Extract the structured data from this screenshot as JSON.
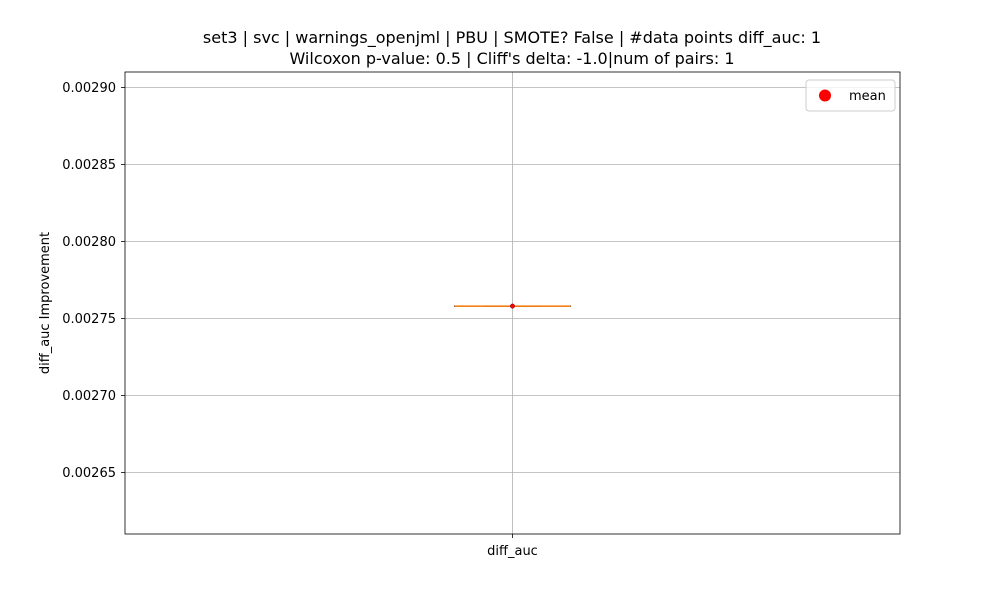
{
  "chart_data": {
    "type": "box",
    "title": "set3 | svc | warnings_openjml | PBU | SMOTE? False | #data points diff_auc: 1",
    "subtitle": "Wilcoxon p-value: 0.5 | Cliff's delta: -1.0|num of pairs: 1",
    "xlabel": "",
    "ylabel": "diff_auc Improvement",
    "categories": [
      "diff_auc"
    ],
    "ylim": [
      0.00261,
      0.00291
    ],
    "yticks": [
      0.00265,
      0.0027,
      0.00275,
      0.0028,
      0.00285,
      0.0029
    ],
    "ytick_labels": [
      "0.00265",
      "0.00270",
      "0.00275",
      "0.00280",
      "0.00285",
      "0.00290"
    ],
    "boxes": [
      {
        "category": "diff_auc",
        "min": 0.002758,
        "q1": 0.002758,
        "median": 0.002758,
        "q3": 0.002758,
        "max": 0.002758,
        "mean": 0.002758
      }
    ],
    "grid": true,
    "legend": {
      "placement": "top-right",
      "entries": [
        {
          "label": "mean",
          "color": "#ff0000",
          "marker": "circle"
        }
      ]
    },
    "colors": {
      "box": "#000000",
      "median": "#ff7f0e",
      "mean": "#ff0000",
      "grid": "#b0b0b0"
    }
  }
}
